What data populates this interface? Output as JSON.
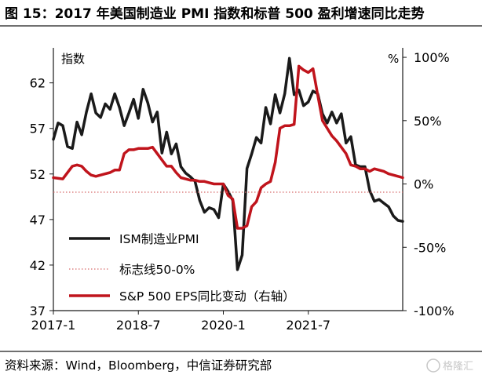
{
  "figure": {
    "title": "图 15：2017 年美国制造业 PMI 指数和标普 500 盈利增速同比走势",
    "source": "资料来源：Wind，Bloomberg，中信证券研究部",
    "watermark": "格隆汇"
  },
  "chart_data": {
    "type": "line",
    "left_axis_label": "指数",
    "right_axis_label": "%",
    "x_ticks": [
      "2017-1",
      "2018-7",
      "2020-1",
      "2021-7"
    ],
    "x_tick_indices": [
      0,
      18,
      36,
      54
    ],
    "y_left": {
      "ticks": [
        37,
        42,
        47,
        52,
        57,
        62
      ],
      "range": [
        37,
        65.5
      ]
    },
    "y_right": {
      "ticks": [
        "100%",
        "50%",
        "0%",
        "-50%",
        "-100%"
      ],
      "tick_values": [
        100,
        50,
        0,
        -50,
        -100
      ],
      "range": [
        -100,
        105
      ]
    },
    "x_range": [
      0,
      74
    ],
    "series": [
      {
        "name": "ISM制造业PMI",
        "axis": "left",
        "color": "#1a1a1a",
        "x": [
          0,
          1,
          2,
          3,
          4,
          5,
          6,
          7,
          8,
          9,
          10,
          11,
          12,
          13,
          14,
          15,
          16,
          17,
          18,
          19,
          20,
          21,
          22,
          23,
          24,
          25,
          26,
          27,
          28,
          29,
          30,
          31,
          32,
          33,
          34,
          35,
          36,
          37,
          38,
          39,
          40,
          41,
          42,
          43,
          44,
          45,
          46,
          47,
          48,
          49,
          50,
          51,
          52,
          53,
          54,
          55,
          56,
          57,
          58,
          59,
          60,
          61,
          62,
          63,
          64,
          65,
          66,
          67,
          68,
          69,
          70,
          71,
          72,
          73,
          74
        ],
        "values": [
          55.8,
          57.6,
          57.3,
          55.0,
          54.8,
          57.7,
          56.3,
          58.8,
          60.8,
          58.7,
          58.2,
          59.7,
          59.1,
          60.8,
          59.3,
          57.3,
          58.7,
          60.2,
          58.1,
          61.3,
          59.8,
          57.7,
          58.8,
          54.3,
          56.6,
          54.2,
          55.3,
          52.8,
          52.1,
          51.7,
          51.2,
          49.1,
          47.8,
          48.3,
          48.1,
          47.2,
          50.9,
          50.1,
          49.1,
          41.5,
          43.1,
          52.6,
          54.2,
          56.0,
          55.4,
          59.3,
          57.5,
          60.7,
          58.7,
          60.8,
          64.7,
          60.7,
          61.2,
          59.5,
          59.9,
          61.1,
          60.8,
          58.6,
          57.6,
          58.8,
          57.6,
          58.6,
          55.4,
          56.1,
          53.0,
          52.8,
          52.8,
          50.2,
          49.0,
          49.2,
          48.8,
          48.4,
          47.4,
          46.9,
          46.8
        ]
      },
      {
        "name": "S&P 500 EPS同比变动（右轴）",
        "axis": "right",
        "color": "#c0141c",
        "x": [
          0,
          2,
          4,
          5,
          6,
          7,
          8,
          9,
          10,
          11,
          12,
          13,
          14,
          15,
          16,
          17,
          18,
          19,
          20,
          21,
          22,
          23,
          24,
          25,
          26,
          27,
          28,
          29,
          30,
          31,
          32,
          33,
          34,
          35,
          36,
          37,
          38,
          39,
          40,
          41,
          42,
          43,
          44,
          45,
          46,
          47,
          48,
          49,
          50,
          51,
          52,
          53,
          54,
          55,
          56,
          57,
          58,
          59,
          60,
          61,
          62,
          63,
          64,
          65,
          66,
          67,
          68,
          69,
          70,
          71,
          72,
          73,
          74
        ],
        "values": [
          5,
          4,
          14,
          15,
          14,
          10,
          7,
          6,
          7,
          8,
          9,
          11,
          11,
          24,
          27,
          27,
          28,
          28,
          28,
          29,
          24,
          19,
          14,
          14,
          9,
          5,
          4,
          3,
          3,
          2,
          2,
          1,
          0,
          0,
          0,
          -9,
          -12,
          -35,
          -35,
          -33,
          -18,
          -14,
          -3,
          0,
          2,
          17,
          44,
          46,
          46,
          47,
          93,
          90,
          88,
          91,
          70,
          50,
          44,
          38,
          34,
          29,
          24,
          15,
          14,
          12,
          12,
          10,
          12,
          11,
          10,
          8,
          7,
          6,
          5
        ]
      },
      {
        "name": "标志线50-0%",
        "axis": "left",
        "color": "#d86c6c",
        "style": "dotted",
        "y": 50
      }
    ],
    "legend": [
      "ISM制造业PMI",
      "标志线50-0%",
      "S&P 500 EPS同比变动（右轴）"
    ],
    "legend_position": "bottom-left"
  }
}
